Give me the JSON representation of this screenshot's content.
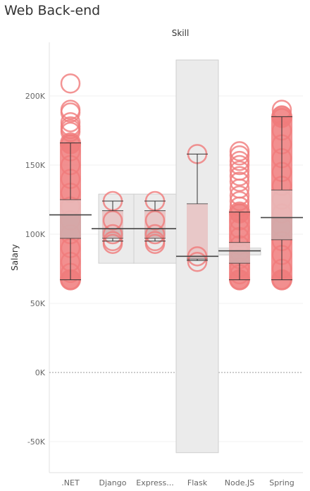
{
  "title": "Web Back-end",
  "chart_data": {
    "type": "scatter",
    "subtype": "box-and-whisker with jittered circles",
    "title": "Web Back-end",
    "column_header": "Skill",
    "ylabel": "Salary",
    "categories": [
      ".NET",
      "Django",
      "Express...",
      "Flask",
      "Node.JS",
      "Spring"
    ],
    "yticks": [
      -50000,
      0,
      50000,
      100000,
      150000,
      200000
    ],
    "ytick_labels": [
      "-50K",
      "0K",
      "50K",
      "100K",
      "150K",
      "200K"
    ],
    "ylim": [
      -72000,
      240000
    ],
    "grid": true,
    "zero_line": true,
    "colors": {
      "circle": "#f07b7b",
      "box_upper": "#e8c4c4",
      "box_lower": "#cdb4b4",
      "band": "#ebebeb",
      "whisker": "#333333",
      "mean_line": "#444444"
    },
    "series": [
      {
        "category": ".NET",
        "points": [
          209000,
          190000,
          188000,
          181000,
          178000,
          176000,
          174000,
          165000,
          160000,
          150000,
          140000,
          130000,
          120000,
          110000,
          100000,
          90000,
          80000,
          72000,
          67000
        ],
        "whisker_low": 67000,
        "q1": 97000,
        "median": 114000,
        "q3": 125000,
        "whisker_high": 166000,
        "mean": 114000
      },
      {
        "category": "Django",
        "points": [
          124000,
          110000,
          100000,
          95000,
          93000
        ],
        "whisker_low": 95000,
        "q1": 97000,
        "median": 104000,
        "q3": 117000,
        "whisker_high": 124000,
        "mean": 104000,
        "band": [
          79000,
          129000
        ]
      },
      {
        "category": "Express...",
        "points": [
          124000,
          110000,
          100000,
          95000,
          93000
        ],
        "whisker_low": 95000,
        "q1": 97000,
        "median": 104000,
        "q3": 117000,
        "whisker_high": 124000,
        "mean": 104000,
        "band": [
          79000,
          129000
        ]
      },
      {
        "category": "Flask",
        "points": [
          158000,
          84000,
          80000
        ],
        "whisker_low": 81000,
        "q1": 82000,
        "median": 84000,
        "q3": 122000,
        "whisker_high": 158000,
        "mean": 84000,
        "band": [
          -58000,
          226000
        ]
      },
      {
        "category": "Node.JS",
        "points": [
          160000,
          157000,
          153000,
          150000,
          146000,
          142000,
          138000,
          133000,
          128000,
          124000,
          120000,
          115000,
          110000,
          104000,
          98000,
          92000,
          87000,
          82000,
          76000,
          71000,
          67000
        ],
        "whisker_low": 67000,
        "q1": 79000,
        "median": 88000,
        "q3": 94000,
        "whisker_high": 116000,
        "mean": 88000,
        "band": [
          85000,
          90000
        ]
      },
      {
        "category": "Spring",
        "points": [
          190000,
          186000,
          184000,
          175000,
          165000,
          155000,
          145000,
          135000,
          125000,
          115000,
          105000,
          95000,
          85000,
          75000,
          67000
        ],
        "whisker_low": 67000,
        "q1": 96000,
        "median": 112000,
        "q3": 132000,
        "whisker_high": 185000,
        "mean": 112000
      }
    ]
  }
}
